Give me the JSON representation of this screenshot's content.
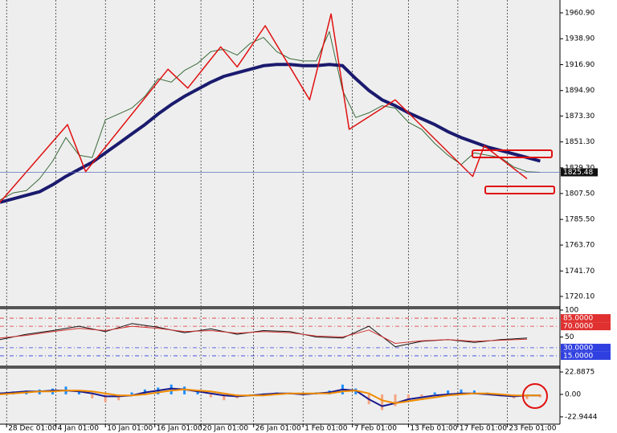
{
  "chart_data": [
    {
      "type": "line",
      "x": [
        0,
        4,
        8,
        12,
        16,
        20,
        24,
        28,
        32,
        36,
        40,
        44,
        48,
        52,
        56,
        60,
        64,
        68,
        72,
        76,
        80,
        84,
        88,
        92,
        96,
        100,
        104,
        108,
        112,
        116,
        120,
        124,
        128,
        132,
        136,
        140,
        144,
        148,
        152,
        156,
        160,
        164
      ],
      "xlim": [
        0,
        170
      ],
      "ylim": [
        1711.9,
        1971.8
      ],
      "yticks": [
        {
          "value": 1960.9,
          "label": "1960.90"
        },
        {
          "value": 1938.9,
          "label": "1938.90"
        },
        {
          "value": 1916.9,
          "label": "1916.90"
        },
        {
          "value": 1894.9,
          "label": "1894.90"
        },
        {
          "value": 1873.3,
          "label": "1873.30"
        },
        {
          "value": 1851.3,
          "label": "1851.30"
        },
        {
          "value": 1829.3,
          "label": "1829.30"
        },
        {
          "value": 1807.5,
          "label": "1807.50"
        },
        {
          "value": 1785.5,
          "label": "1785.50"
        },
        {
          "value": 1763.7,
          "label": "1763.70"
        },
        {
          "value": 1741.7,
          "label": "1741.70"
        },
        {
          "value": 1720.1,
          "label": "1720.10"
        }
      ],
      "current_price": 1825.48,
      "series": [
        {
          "color": "#3a6a3a",
          "width": 1,
          "values": [
            1802,
            1808,
            1810,
            1820,
            1835,
            1855,
            1840,
            1838,
            1870,
            1875,
            1880,
            1890,
            1905,
            1902,
            1912,
            1918,
            1928,
            1930,
            1925,
            1935,
            1940,
            1928,
            1922,
            1920,
            1920,
            1945,
            1895,
            1872,
            1876,
            1882,
            1880,
            1868,
            1862,
            1850,
            1840,
            1832,
            1842,
            1840,
            1838,
            1830,
            1826,
            1825.48
          ]
        },
        {
          "color": "#1a1a6e",
          "width": 4,
          "values": [
            1800,
            1803,
            1806,
            1809,
            1815,
            1822,
            1828,
            1834,
            1842,
            1850,
            1858,
            1866,
            1875,
            1883,
            1890,
            1896,
            1902,
            1907,
            1910,
            1913,
            1916,
            1917,
            1917,
            1916,
            1916,
            1917,
            1916,
            1905,
            1895,
            1887,
            1882,
            1876,
            1871,
            1866,
            1860,
            1855,
            1851,
            1847,
            1844,
            1841,
            1838,
            1835
          ]
        },
        {
          "color": "#e01010",
          "width": 1.5,
          "x": [
            0,
            20.5,
            26,
            51,
            57,
            67,
            72,
            80.5,
            94,
            100.5,
            106,
            120,
            143.5,
            147,
            160
          ],
          "values": [
            1800,
            1866,
            1826,
            1913,
            1897,
            1932,
            1915,
            1950,
            1887,
            1960,
            1862,
            1887,
            1822,
            1848,
            1820
          ]
        }
      ]
    },
    {
      "type": "line",
      "x": [
        0,
        8,
        16,
        24,
        32,
        40,
        48,
        56,
        64,
        72,
        80,
        88,
        96,
        104,
        112,
        120,
        128,
        136,
        144,
        152,
        160
      ],
      "xlim": [
        0,
        170
      ],
      "ylim": [
        -3,
        101.5
      ],
      "yticks": [
        100,
        50
      ],
      "levels": [
        {
          "value": 85,
          "label": "85.0000",
          "color": "#e03030"
        },
        {
          "value": 70,
          "label": "70.0000",
          "color": "#e03030"
        },
        {
          "value": 30,
          "label": "30.0000",
          "color": "#3040e0"
        },
        {
          "value": 15,
          "label": "15.0000",
          "color": "#3040e0"
        }
      ],
      "series": [
        {
          "color": "#111111",
          "width": 1,
          "values": [
            45,
            55,
            62,
            70,
            60,
            75,
            68,
            58,
            65,
            55,
            62,
            60,
            50,
            48,
            70,
            32,
            42,
            45,
            40,
            45,
            48
          ]
        },
        {
          "color": "#d03030",
          "width": 1,
          "values": [
            48,
            53,
            60,
            66,
            62,
            70,
            66,
            60,
            62,
            57,
            60,
            58,
            52,
            50,
            63,
            38,
            43,
            45,
            42,
            44,
            46
          ]
        }
      ]
    },
    {
      "type": "bar",
      "x": [
        0,
        4,
        8,
        12,
        16,
        20,
        24,
        28,
        32,
        36,
        40,
        44,
        48,
        52,
        56,
        60,
        64,
        68,
        72,
        76,
        80,
        84,
        88,
        92,
        96,
        100,
        104,
        108,
        112,
        116,
        120,
        124,
        128,
        132,
        136,
        140,
        144,
        148,
        152,
        156,
        160,
        164
      ],
      "xlim": [
        0,
        170
      ],
      "ylim": [
        -30.4,
        26.2
      ],
      "yticks": [
        {
          "value": 22.8875,
          "label": "22.8875"
        },
        {
          "value": 0,
          "label": "0.00"
        },
        {
          "value": -22.9444,
          "label": "-22.9444"
        }
      ],
      "xticks": [
        {
          "value": 2,
          "label": "28 Dec 01:00"
        },
        {
          "value": 17,
          "label": "4 Jan 01:00"
        },
        {
          "value": 32,
          "label": "10 Jan 01:00"
        },
        {
          "value": 47,
          "label": "16 Jan 01:00"
        },
        {
          "value": 61,
          "label": "20 Jan 01:00"
        },
        {
          "value": 77,
          "label": "26 Jan 01:00"
        },
        {
          "value": 92,
          "label": "1 Feb 01:00"
        },
        {
          "value": 107,
          "label": "7 Feb 01:00"
        },
        {
          "value": 124,
          "label": "13 Feb 01:00"
        },
        {
          "value": 139,
          "label": "17 Feb 01:00"
        },
        {
          "value": 154,
          "label": "23 Feb 01:00"
        }
      ],
      "series": [
        {
          "type": "bar",
          "color": "#1e90ff",
          "negative_color": "#f4a582",
          "values": [
            2,
            3,
            4,
            5,
            6,
            8,
            3,
            -4,
            -8,
            -6,
            2,
            5,
            7,
            10,
            8,
            3,
            -3,
            -6,
            -4,
            -2,
            1,
            2,
            1,
            -1,
            2,
            4,
            10,
            6,
            -10,
            -16,
            -12,
            -6,
            -2,
            2,
            4,
            5,
            4,
            2,
            -2,
            -4,
            -5,
            -3
          ]
        },
        {
          "type": "line",
          "color": "#1a1a8e",
          "width": 2,
          "values": [
            1,
            2,
            3,
            3,
            4,
            4,
            3,
            1,
            -2,
            -2,
            -1,
            2,
            4,
            6,
            5,
            3,
            1,
            -1,
            -2,
            -1,
            0,
            1,
            1,
            0,
            1,
            2,
            5,
            4,
            -5,
            -12,
            -9,
            -5,
            -3,
            -1,
            0,
            1,
            1,
            0,
            -1,
            -2,
            -1,
            -1
          ]
        },
        {
          "type": "line",
          "color": "#f08c00",
          "width": 2,
          "values": [
            0,
            1,
            2,
            3,
            3,
            4,
            4,
            3,
            1,
            -1,
            -1,
            0,
            2,
            4,
            5,
            4,
            3,
            1,
            -1,
            -1,
            -1,
            0,
            1,
            1,
            1,
            1,
            3,
            4,
            1,
            -6,
            -9,
            -7,
            -5,
            -3,
            -1,
            0,
            1,
            1,
            0,
            -1,
            -1,
            -1
          ]
        }
      ]
    }
  ]
}
